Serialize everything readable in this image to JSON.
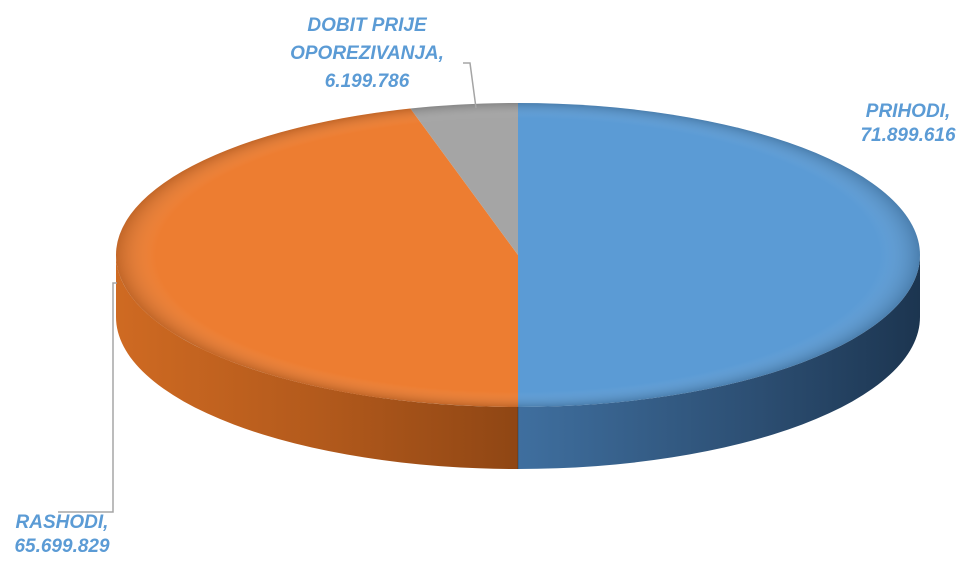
{
  "chart_data": {
    "type": "pie",
    "title": "",
    "slices": [
      {
        "label": "PRIHODI",
        "value": 71899616,
        "display_value": "71.899.616",
        "color": "#5b9bd5"
      },
      {
        "label": "RASHODI",
        "value": 65699829,
        "display_value": "65.699.829",
        "color": "#ed7d31"
      },
      {
        "label": "DOBIT PRIJE OPOREZIVANJA",
        "value": 6199786,
        "display_value": "6.199.786",
        "color": "#a5a5a5"
      }
    ],
    "label_color": "#5b9bd5",
    "style": "3d"
  }
}
